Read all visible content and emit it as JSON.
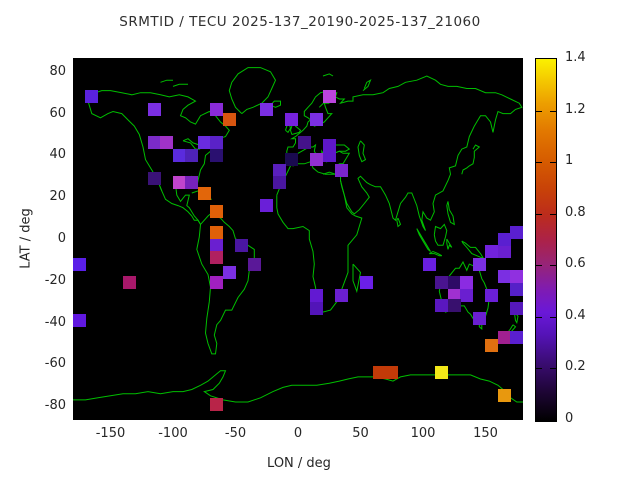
{
  "title": "SRMTID / TECU 2025-137_20190-2025-137_21060",
  "plot": {
    "background": "#000000",
    "coast_color": "#00BE00"
  },
  "axes": {
    "x": {
      "label": "LON / deg",
      "min": -180,
      "max": 180,
      "ticks": [
        -150,
        -100,
        -50,
        0,
        50,
        100,
        150
      ]
    },
    "y": {
      "label": "LAT / deg",
      "min": -86.5,
      "max": 86.7,
      "ticks": [
        80,
        60,
        40,
        20,
        0,
        -20,
        -40,
        -60,
        -80
      ]
    }
  },
  "colorbar": {
    "min": 0,
    "max": 1.4,
    "ticks": [
      0,
      0.2,
      0.4,
      0.6,
      0.8,
      1,
      1.2,
      1.4
    ],
    "tick_labels": [
      "0",
      "0.2",
      "0.4",
      "0.6",
      "0.8",
      "1",
      "1.2",
      "1.4"
    ],
    "palette_stops": [
      [
        0.0,
        "#000000"
      ],
      [
        0.08,
        "#1E0535"
      ],
      [
        0.16,
        "#3A0C72"
      ],
      [
        0.24,
        "#5513B8"
      ],
      [
        0.3,
        "#6A18D8"
      ],
      [
        0.36,
        "#7E1BB4"
      ],
      [
        0.43,
        "#962479"
      ],
      [
        0.5,
        "#AC2248"
      ],
      [
        0.57,
        "#BC2C1C"
      ],
      [
        0.64,
        "#C84208"
      ],
      [
        0.72,
        "#D65C00"
      ],
      [
        0.8,
        "#E27800"
      ],
      [
        0.88,
        "#EDA000"
      ],
      [
        0.94,
        "#F4C800"
      ],
      [
        1.0,
        "#FBF100"
      ]
    ]
  },
  "chart_data": {
    "type": "heatmap",
    "title": "SRMTID / TECU 2025-137_20190-2025-137_21060",
    "xlabel": "LON / deg",
    "ylabel": "LAT / deg",
    "xlim": [
      -180,
      180
    ],
    "ylim": [
      -86.5,
      86.7
    ],
    "value_units": "TECU",
    "value_range": [
      0,
      1.4
    ],
    "lon_bin_deg": 10,
    "point_format": [
      "lon_center",
      "lat_center",
      "value",
      "color"
    ],
    "points": [
      [
        -165,
        68,
        0.37,
        "#5A22DD"
      ],
      [
        -115,
        62,
        0.4,
        "#7B2FE2"
      ],
      [
        -65,
        62,
        0.42,
        "#8A2BD8"
      ],
      [
        -55,
        57,
        0.8,
        "#D85510"
      ],
      [
        -115,
        46,
        0.4,
        "#7B2BC8"
      ],
      [
        -105,
        46,
        0.5,
        "#A032C8"
      ],
      [
        -75,
        46,
        0.38,
        "#6A2BE0"
      ],
      [
        -65,
        46,
        0.36,
        "#5A22C8"
      ],
      [
        -95,
        40,
        0.36,
        "#5A2BDD"
      ],
      [
        -85,
        40,
        0.33,
        "#4E22B8"
      ],
      [
        -65,
        40,
        0.18,
        "#2A1070"
      ],
      [
        -115,
        29,
        0.22,
        "#3A1276"
      ],
      [
        -95,
        27,
        0.5,
        "#C044CC"
      ],
      [
        -85,
        27,
        0.4,
        "#7722BB"
      ],
      [
        -75,
        22,
        0.9,
        "#E2660A"
      ],
      [
        -65,
        13,
        0.9,
        "#E06008"
      ],
      [
        -65,
        3,
        0.9,
        "#E06008"
      ],
      [
        -65,
        -3,
        0.37,
        "#6A1FD0"
      ],
      [
        -65,
        -9,
        0.58,
        "#B02060"
      ],
      [
        -45,
        -3,
        0.28,
        "#4A16A0"
      ],
      [
        -55,
        -16,
        0.4,
        "#7B2FE2"
      ],
      [
        -65,
        -21,
        0.5,
        "#A020C0"
      ],
      [
        -35,
        -12,
        0.3,
        "#5A1898"
      ],
      [
        -175,
        -12,
        0.36,
        "#5A1FE8"
      ],
      [
        -135,
        -21,
        0.56,
        "#A8186A"
      ],
      [
        -175,
        -39,
        0.36,
        "#6018E0"
      ],
      [
        -65,
        -79,
        0.6,
        "#B82448"
      ],
      [
        -25,
        62,
        0.4,
        "#7B2FE2"
      ],
      [
        -5,
        57,
        0.4,
        "#7722DD"
      ],
      [
        15,
        57,
        0.4,
        "#7B2FE2"
      ],
      [
        25,
        68,
        0.5,
        "#BB44DD"
      ],
      [
        5,
        46,
        0.26,
        "#44128A"
      ],
      [
        25,
        45,
        0.35,
        "#5E17C8"
      ],
      [
        25,
        40,
        0.35,
        "#5E17C8"
      ],
      [
        -5,
        38,
        0.12,
        "#1A0A50"
      ],
      [
        15,
        38,
        0.45,
        "#9030D0"
      ],
      [
        35,
        33,
        0.4,
        "#7A25CC"
      ],
      [
        -15,
        33,
        0.35,
        "#5A1FBE"
      ],
      [
        -15,
        27,
        0.28,
        "#4A16A0"
      ],
      [
        -25,
        16,
        0.37,
        "#6A1FD8"
      ],
      [
        15,
        -27,
        0.35,
        "#6219D2"
      ],
      [
        15,
        -33,
        0.32,
        "#5214B8"
      ],
      [
        35,
        -27,
        0.37,
        "#6A1FD0"
      ],
      [
        55,
        -21,
        0.38,
        "#6B1FE8"
      ],
      [
        105,
        -12,
        0.38,
        "#6A1FE0"
      ],
      [
        145,
        -12,
        0.4,
        "#7B2FE2"
      ],
      [
        115,
        -21,
        0.28,
        "#4A1490"
      ],
      [
        125,
        -21,
        0.2,
        "#2E0A66"
      ],
      [
        135,
        -21,
        0.42,
        "#8B2BE2"
      ],
      [
        125,
        -27,
        0.48,
        "#A030D0"
      ],
      [
        135,
        -27,
        0.37,
        "#6A1FD0"
      ],
      [
        155,
        -27,
        0.37,
        "#6A1FD8"
      ],
      [
        115,
        -32,
        0.32,
        "#5A17C0"
      ],
      [
        125,
        -32,
        0.22,
        "#38106E"
      ],
      [
        145,
        -38,
        0.37,
        "#6A1FD0"
      ],
      [
        155,
        -6,
        0.4,
        "#7222DD"
      ],
      [
        165,
        -6,
        0.37,
        "#6A1FD0"
      ],
      [
        165,
        0,
        0.35,
        "#5A1FD0"
      ],
      [
        175,
        3,
        0.35,
        "#5A1FD0"
      ],
      [
        165,
        -18,
        0.4,
        "#7B2FE2"
      ],
      [
        175,
        -18,
        0.45,
        "#9030E0"
      ],
      [
        175,
        -24,
        0.32,
        "#5520C8"
      ],
      [
        175,
        -33,
        0.32,
        "#5518BB"
      ],
      [
        165,
        -47,
        0.52,
        "#A02090"
      ],
      [
        175,
        -47,
        0.35,
        "#5A1FD0"
      ],
      [
        155,
        -51,
        0.93,
        "#E07010"
      ],
      [
        65,
        -64,
        0.72,
        "#C23A08"
      ],
      [
        75,
        -64,
        0.72,
        "#C23A08"
      ],
      [
        115,
        -64,
        1.38,
        "#F2E818"
      ],
      [
        165,
        -75,
        1.05,
        "#E8980E"
      ]
    ]
  }
}
